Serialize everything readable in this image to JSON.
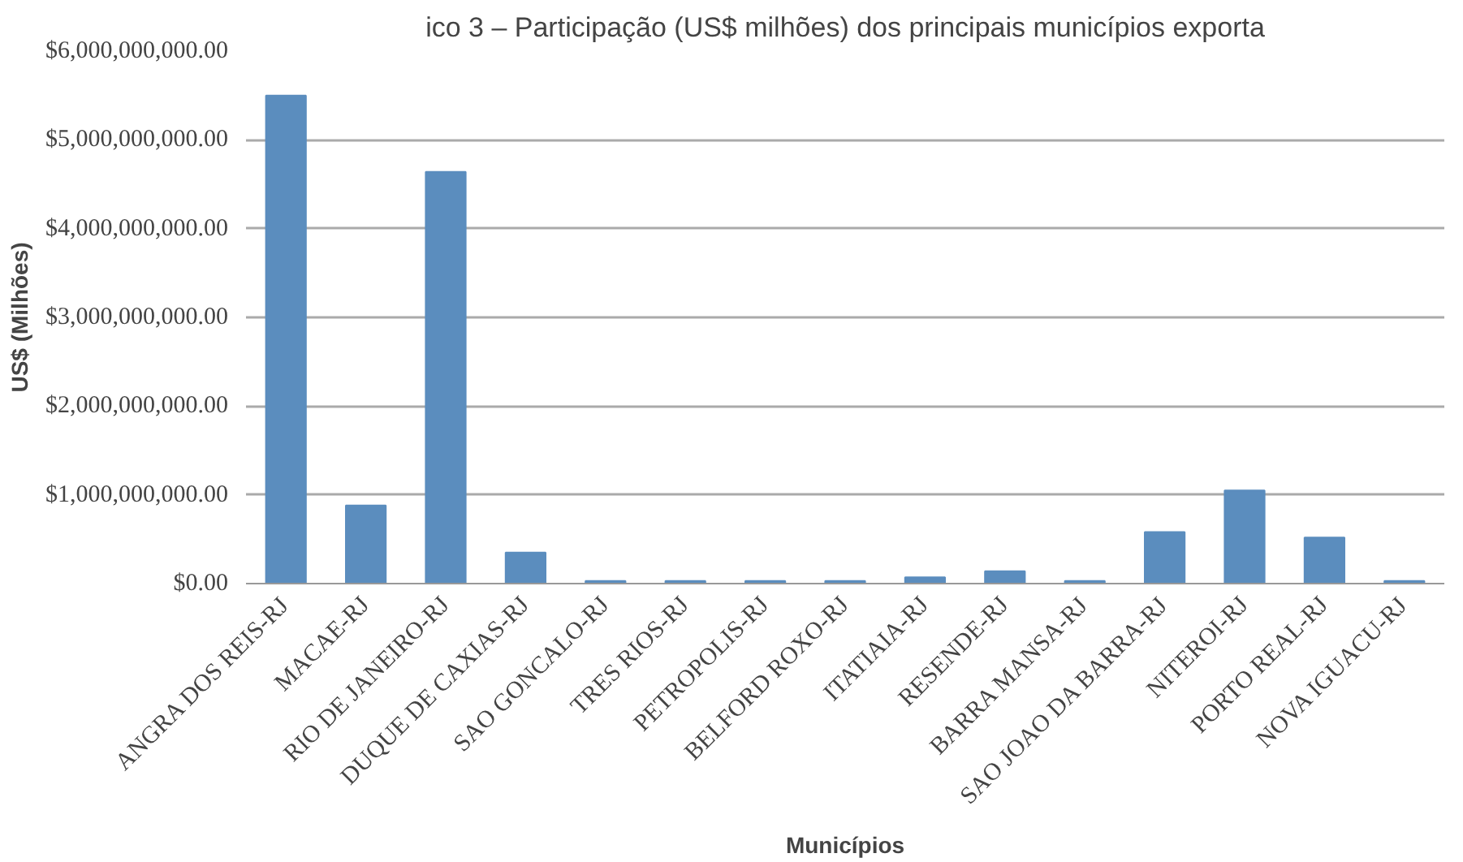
{
  "chart_data": {
    "type": "bar",
    "title": "ico 3 – Participação (US$ milhões) dos principais municípios exporta",
    "xlabel": "Municípios",
    "ylabel": "US$ (Milhões)",
    "categories": [
      "ANGRA DOS REIS-RJ",
      "MACAE-RJ",
      "RIO DE JANEIRO-RJ",
      "DUQUE DE CAXIAS-RJ",
      "SAO GONCALO-RJ",
      "TRES RIOS-RJ",
      "PETROPOLIS-RJ",
      "BELFORD ROXO-RJ",
      "ITATIAIA-RJ",
      "RESENDE-RJ",
      "BARRA MANSA-RJ",
      "SAO JOAO DA BARRA-RJ",
      "NITEROI-RJ",
      "PORTO REAL-RJ",
      "NOVA IGUACU-RJ"
    ],
    "values": [
      5500000000,
      880000000,
      4640000000,
      350000000,
      30000000,
      30000000,
      30000000,
      30000000,
      70000000,
      140000000,
      30000000,
      580000000,
      1050000000,
      520000000,
      30000000
    ],
    "color": "#5b8dbe",
    "ylim": [
      0,
      6000000000
    ],
    "yticks": [
      {
        "value": 0,
        "label": "$0.00"
      },
      {
        "value": 1000000000,
        "label": "$1,000,000,000.00"
      },
      {
        "value": 2000000000,
        "label": "$2,000,000,000.00"
      },
      {
        "value": 3000000000,
        "label": "$3,000,000,000.00"
      },
      {
        "value": 4000000000,
        "label": "$4,000,000,000.00"
      },
      {
        "value": 5000000000,
        "label": "$5,000,000,000.00"
      },
      {
        "value": 6000000000,
        "label": "$6,000,000,000.00"
      }
    ],
    "grid": "y"
  }
}
